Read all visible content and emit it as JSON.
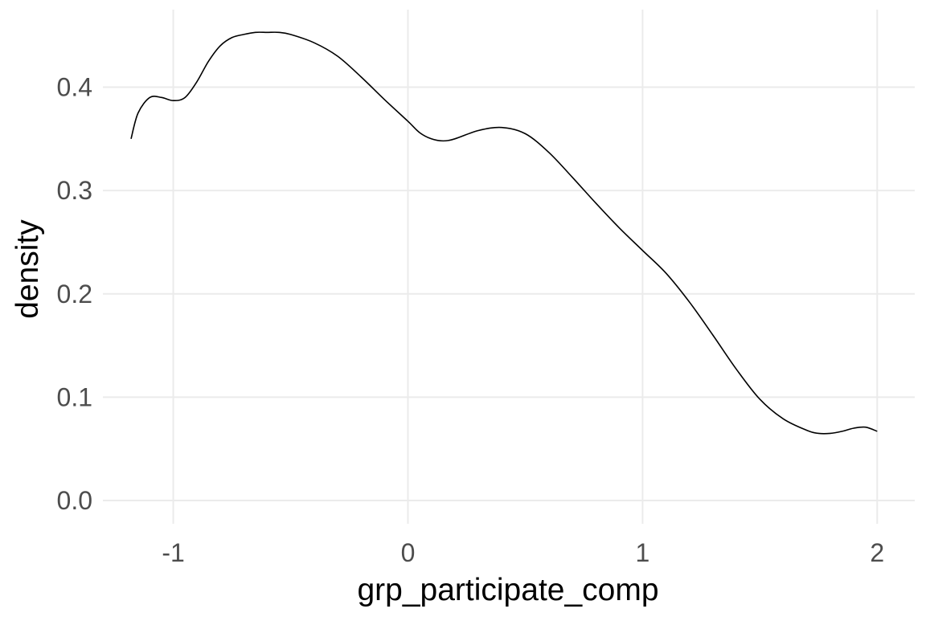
{
  "chart_data": {
    "type": "line",
    "title": "",
    "xlabel": "grp_participate_comp",
    "ylabel": "density",
    "xlim": [
      -1.3,
      2.16
    ],
    "ylim": [
      -0.0225,
      0.475
    ],
    "x_ticks": [
      -1,
      0,
      1,
      2
    ],
    "x_tick_labels": [
      "-1",
      "0",
      "1",
      "2"
    ],
    "y_ticks": [
      0.0,
      0.1,
      0.2,
      0.3,
      0.4
    ],
    "y_tick_labels": [
      "0.0",
      "0.1",
      "0.2",
      "0.3",
      "0.4"
    ],
    "grid": true,
    "legend": "none",
    "line_color": "#000000",
    "series": [
      {
        "x": [
          -1.18,
          -1.15,
          -1.1,
          -1.05,
          -1.0,
          -0.95,
          -0.9,
          -0.85,
          -0.8,
          -0.75,
          -0.7,
          -0.65,
          -0.6,
          -0.55,
          -0.5,
          -0.4,
          -0.3,
          -0.2,
          -0.1,
          0.0,
          0.05,
          0.1,
          0.15,
          0.2,
          0.3,
          0.4,
          0.5,
          0.6,
          0.7,
          0.8,
          0.9,
          1.0,
          1.1,
          1.2,
          1.3,
          1.4,
          1.5,
          1.6,
          1.7,
          1.75,
          1.8,
          1.85,
          1.9,
          1.95,
          2.0
        ],
        "y": [
          0.35,
          0.375,
          0.39,
          0.39,
          0.387,
          0.39,
          0.405,
          0.425,
          0.44,
          0.448,
          0.451,
          0.453,
          0.453,
          0.453,
          0.451,
          0.443,
          0.43,
          0.41,
          0.388,
          0.367,
          0.356,
          0.35,
          0.348,
          0.35,
          0.358,
          0.361,
          0.355,
          0.337,
          0.313,
          0.288,
          0.264,
          0.242,
          0.22,
          0.192,
          0.16,
          0.127,
          0.098,
          0.079,
          0.068,
          0.065,
          0.065,
          0.067,
          0.07,
          0.071,
          0.067
        ]
      }
    ]
  }
}
